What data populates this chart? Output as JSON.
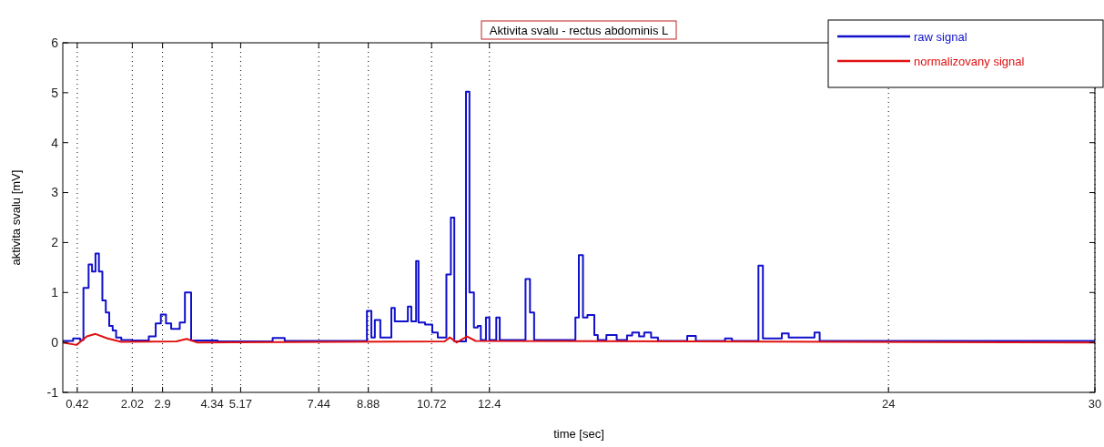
{
  "chart_data": {
    "type": "line",
    "title": "Aktivita svalu - rectus abdominis L",
    "xlabel": "time [sec]",
    "ylabel": "aktivita svalu [mV]",
    "xlim": [
      0,
      30
    ],
    "xticks": [
      0.42,
      2.02,
      2.9,
      4.34,
      5.17,
      7.44,
      8.88,
      10.72,
      12.4,
      24,
      30
    ],
    "ylim": [
      -1,
      6
    ],
    "yticks": [
      -1,
      0,
      1,
      2,
      3,
      4,
      5,
      6
    ],
    "grid": "x",
    "legend": "top right",
    "series": [
      {
        "name": "raw signal",
        "type": "step",
        "color": "#1010cc",
        "x": [
          0,
          0.3,
          0.5,
          0.6,
          0.75,
          0.85,
          0.95,
          1.05,
          1.15,
          1.25,
          1.35,
          1.45,
          1.55,
          1.7,
          2.0,
          2.5,
          2.7,
          2.85,
          3.0,
          3.15,
          3.4,
          3.55,
          3.73,
          4.5,
          6.1,
          6.45,
          8.84,
          8.97,
          9.07,
          9.23,
          9.55,
          9.65,
          10.03,
          10.13,
          10.27,
          10.34,
          10.53,
          10.74,
          10.9,
          11.15,
          11.28,
          11.38,
          11.72,
          11.82,
          11.95,
          12.06,
          12.15,
          12.3,
          12.4,
          12.6,
          12.7,
          13.45,
          13.58,
          13.7,
          14.9,
          15.0,
          15.12,
          15.25,
          15.45,
          15.55,
          15.8,
          16.1,
          16.4,
          16.55,
          16.75,
          16.9,
          17.1,
          17.3,
          18.15,
          18.4,
          19.25,
          19.45,
          20.22,
          20.35,
          20.9,
          21.1,
          21.5,
          21.85,
          22.0,
          30
        ],
        "values": [
          0.03,
          0.08,
          0.05,
          1.09,
          1.56,
          1.42,
          1.78,
          1.42,
          0.84,
          0.6,
          0.33,
          0.24,
          0.1,
          0.05,
          0.04,
          0.12,
          0.38,
          0.56,
          0.38,
          0.27,
          0.4,
          1.0,
          0.04,
          0.02,
          0.09,
          0.03,
          0.63,
          0.1,
          0.45,
          0.1,
          0.69,
          0.42,
          0.72,
          0.42,
          1.63,
          0.4,
          0.36,
          0.2,
          0.1,
          1.36,
          2.5,
          0.02,
          5.02,
          1.0,
          0.3,
          0.33,
          0.05,
          0.5,
          0.05,
          0.5,
          0.05,
          1.27,
          0.6,
          0.05,
          0.5,
          1.75,
          0.5,
          0.55,
          0.15,
          0.05,
          0.15,
          0.05,
          0.14,
          0.2,
          0.12,
          0.2,
          0.1,
          0.03,
          0.13,
          0.03,
          0.08,
          0.03,
          1.54,
          0.08,
          0.18,
          0.1,
          0.1,
          0.2,
          0.03,
          0.03
        ]
      },
      {
        "name": "normalizovany signal",
        "color": "#e01010",
        "x": [
          0,
          0.4,
          0.7,
          0.95,
          1.3,
          1.7,
          3.3,
          3.6,
          3.9,
          11.1,
          11.25,
          11.45,
          11.75,
          12.0,
          30
        ],
        "values": [
          0,
          -0.05,
          0.12,
          0.17,
          0.08,
          0.01,
          0.02,
          0.07,
          0,
          0.02,
          0.1,
          0,
          0.12,
          0.03,
          0
        ]
      }
    ]
  }
}
